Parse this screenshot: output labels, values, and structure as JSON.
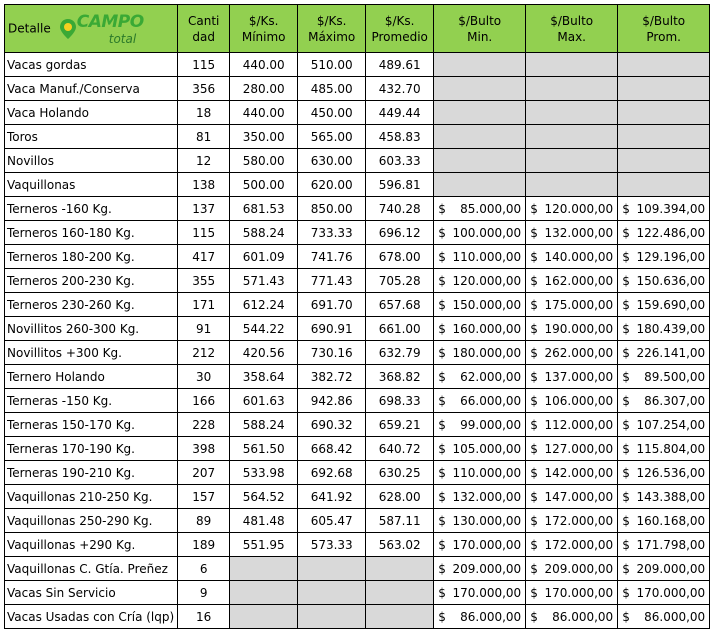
{
  "table": {
    "logo": {
      "main": "CAMPO",
      "sub": "total"
    },
    "currency": "$",
    "headers": [
      [
        "Detalle"
      ],
      [
        "Canti",
        "dad"
      ],
      [
        "$/Ks.",
        "Mínimo"
      ],
      [
        "$/Ks.",
        "Máximo"
      ],
      [
        "$/Ks.",
        "Promedio"
      ],
      [
        "$/Bulto",
        "Min."
      ],
      [
        "$/Bulto",
        "Max."
      ],
      [
        "$/Bulto",
        "Prom."
      ]
    ],
    "rows": [
      [
        "Vacas gordas",
        "115",
        "440.00",
        "510.00",
        "489.61",
        null,
        null,
        null
      ],
      [
        "Vaca Manuf./Conserva",
        "356",
        "280.00",
        "485.00",
        "432.70",
        null,
        null,
        null
      ],
      [
        "Vaca Holando",
        "18",
        "440.00",
        "450.00",
        "449.44",
        null,
        null,
        null
      ],
      [
        "Toros",
        "81",
        "350.00",
        "565.00",
        "458.83",
        null,
        null,
        null
      ],
      [
        "Novillos",
        "12",
        "580.00",
        "630.00",
        "603.33",
        null,
        null,
        null
      ],
      [
        "Vaquillonas",
        "138",
        "500.00",
        "620.00",
        "596.81",
        null,
        null,
        null
      ],
      [
        "Terneros -160 Kg.",
        "137",
        "681.53",
        "850.00",
        "740.28",
        "85.000,00",
        "120.000,00",
        "109.394,00"
      ],
      [
        "Terneros 160-180 Kg.",
        "115",
        "588.24",
        "733.33",
        "696.12",
        "100.000,00",
        "132.000,00",
        "122.486,00"
      ],
      [
        "Terneros 180-200 Kg.",
        "417",
        "601.09",
        "741.76",
        "678.00",
        "110.000,00",
        "140.000,00",
        "129.196,00"
      ],
      [
        "Terneros 200-230 Kg.",
        "355",
        "571.43",
        "771.43",
        "705.28",
        "120.000,00",
        "162.000,00",
        "150.636,00"
      ],
      [
        "Terneros 230-260 Kg.",
        "171",
        "612.24",
        "691.70",
        "657.68",
        "150.000,00",
        "175.000,00",
        "159.690,00"
      ],
      [
        "Novillitos 260-300 Kg.",
        "91",
        "544.22",
        "690.91",
        "661.00",
        "160.000,00",
        "190.000,00",
        "180.439,00"
      ],
      [
        "Novillitos +300 Kg.",
        "212",
        "420.56",
        "730.16",
        "632.79",
        "180.000,00",
        "262.000,00",
        "226.141,00"
      ],
      [
        "Ternero Holando",
        "30",
        "358.64",
        "382.72",
        "368.82",
        "62.000,00",
        "137.000,00",
        "89.500,00"
      ],
      [
        "Terneras -150 Kg.",
        "166",
        "601.63",
        "942.86",
        "698.33",
        "66.000,00",
        "106.000,00",
        "86.307,00"
      ],
      [
        "Terneras 150-170 Kg.",
        "228",
        "588.24",
        "690.32",
        "659.21",
        "99.000,00",
        "112.000,00",
        "107.254,00"
      ],
      [
        "Terneras 170-190 Kg.",
        "398",
        "561.50",
        "668.42",
        "640.72",
        "105.000,00",
        "127.000,00",
        "115.804,00"
      ],
      [
        "Terneras 190-210 Kg.",
        "207",
        "533.98",
        "692.68",
        "630.25",
        "110.000,00",
        "142.000,00",
        "126.536,00"
      ],
      [
        "Vaquillonas 210-250 Kg.",
        "157",
        "564.52",
        "641.92",
        "628.00",
        "132.000,00",
        "147.000,00",
        "143.388,00"
      ],
      [
        "Vaquillonas 250-290 Kg.",
        "89",
        "481.48",
        "605.47",
        "587.11",
        "130.000,00",
        "172.000,00",
        "160.168,00"
      ],
      [
        "Vaquillonas +290 Kg.",
        "189",
        "551.95",
        "573.33",
        "563.02",
        "170.000,00",
        "172.000,00",
        "171.798,00"
      ],
      [
        "Vaquillonas C. Gtía. Preñez",
        "6",
        null,
        null,
        null,
        "209.000,00",
        "209.000,00",
        "209.000,00"
      ],
      [
        "Vacas Sin Servicio",
        "9",
        null,
        null,
        null,
        "170.000,00",
        "170.000,00",
        "170.000,00"
      ],
      [
        "Vacas Usadas con Cría (lqp)",
        "16",
        null,
        null,
        null,
        "86.000,00",
        "86.000,00",
        "86.000,00"
      ]
    ]
  }
}
